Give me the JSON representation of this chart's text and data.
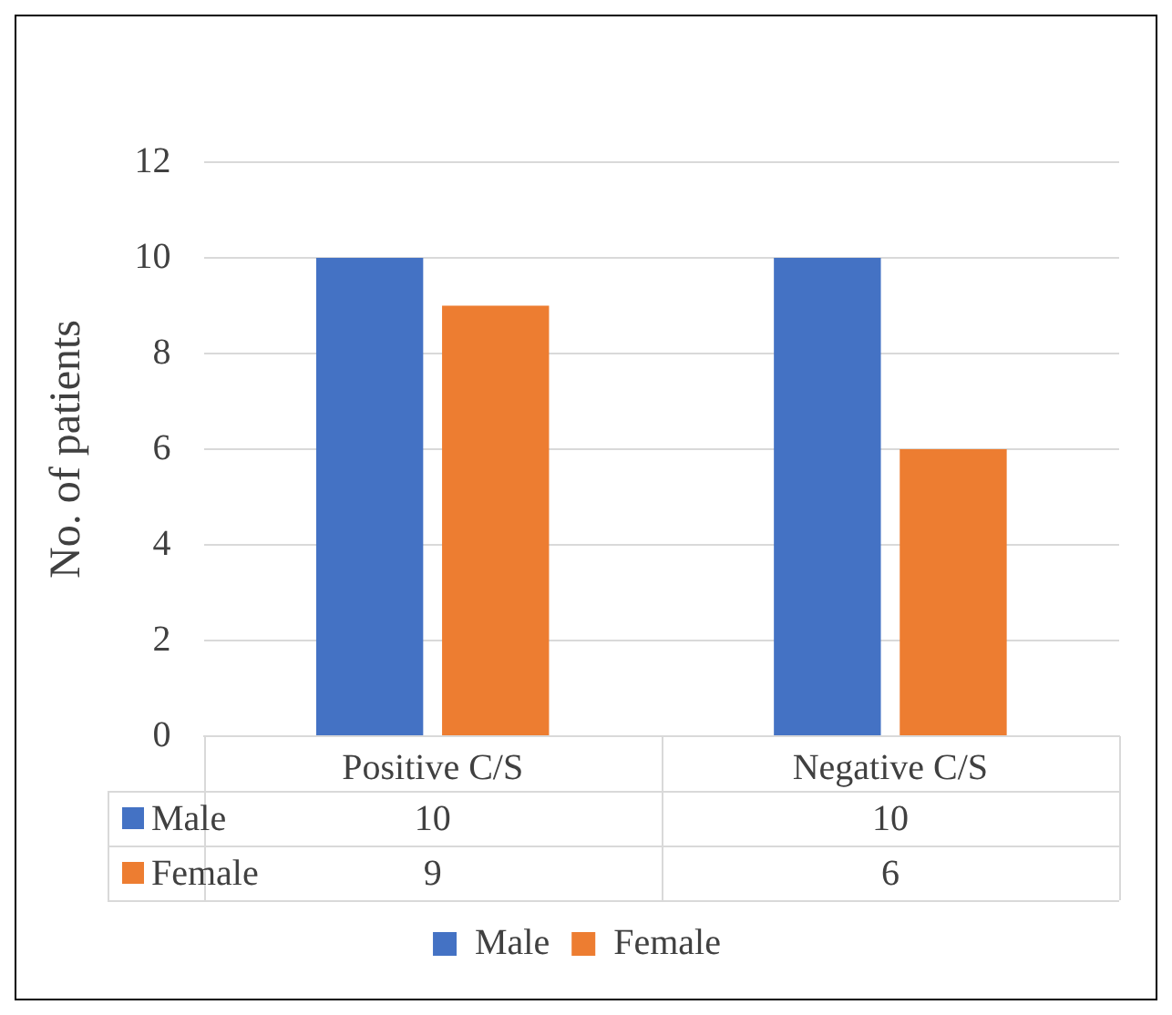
{
  "chart_data": {
    "type": "bar",
    "ylabel": "No. of patients",
    "categories": [
      "Positive C/S",
      "Negative C/S"
    ],
    "series": [
      {
        "name": "Male",
        "color": "#4472c4",
        "values": [
          10,
          10
        ]
      },
      {
        "name": "Female",
        "color": "#ed7d31",
        "values": [
          9,
          6
        ]
      }
    ],
    "ylim": [
      0,
      12
    ],
    "yticks": [
      0,
      2,
      4,
      6,
      8,
      10,
      12
    ],
    "grid": "y",
    "legend": "bottom",
    "data_labels": true
  }
}
